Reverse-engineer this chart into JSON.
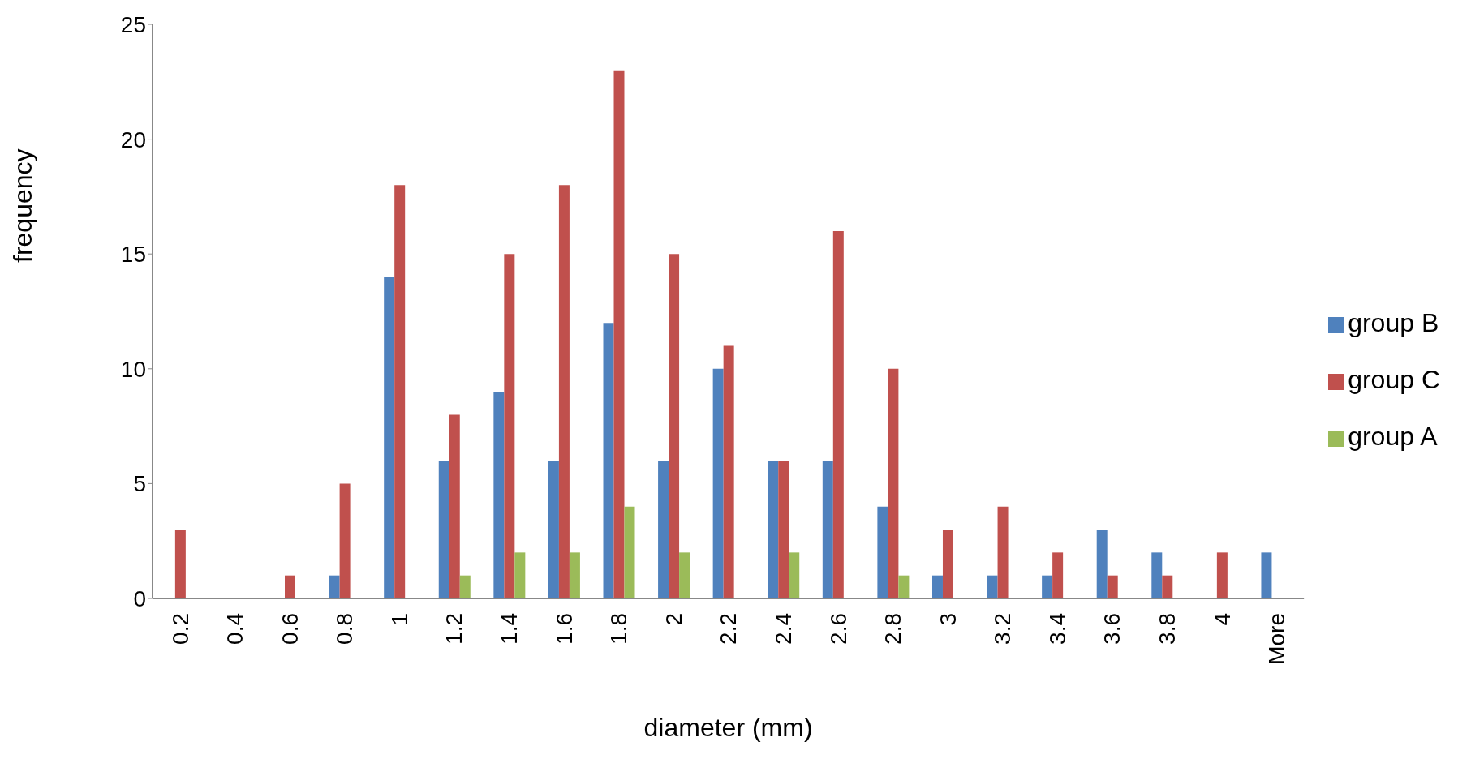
{
  "chart_data": {
    "type": "bar",
    "xlabel": "diameter (mm)",
    "ylabel": "frequency",
    "categories": [
      "0.2",
      "0.4",
      "0.6",
      "0.8",
      "1",
      "1.2",
      "1.4",
      "1.6",
      "1.8",
      "2",
      "2.2",
      "2.4",
      "2.6",
      "2.8",
      "3",
      "3.2",
      "3.4",
      "3.6",
      "3.8",
      "4",
      "More"
    ],
    "series": [
      {
        "name": "group B",
        "color": "#4f81bd",
        "values": [
          0,
          0,
          0,
          1,
          14,
          6,
          9,
          6,
          12,
          6,
          10,
          6,
          6,
          4,
          1,
          1,
          1,
          3,
          2,
          0,
          2
        ]
      },
      {
        "name": "group C",
        "color": "#c0504d",
        "values": [
          3,
          0,
          1,
          5,
          18,
          8,
          15,
          18,
          23,
          15,
          11,
          6,
          16,
          10,
          3,
          4,
          2,
          1,
          1,
          2,
          0
        ]
      },
      {
        "name": "group A",
        "color": "#9bbb59",
        "values": [
          0,
          0,
          0,
          0,
          0,
          1,
          2,
          2,
          4,
          2,
          0,
          2,
          0,
          1,
          0,
          0,
          0,
          0,
          0,
          0,
          0
        ]
      }
    ],
    "ylim": [
      0,
      25
    ],
    "yticks": [
      0,
      5,
      10,
      15,
      20,
      25
    ],
    "grid": false,
    "legend": "right"
  }
}
